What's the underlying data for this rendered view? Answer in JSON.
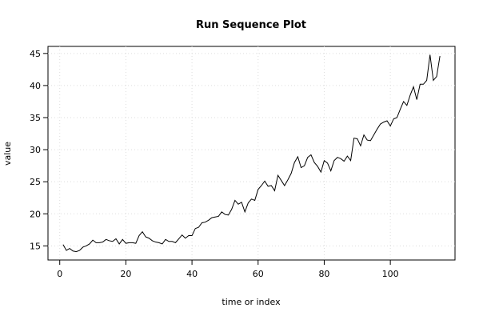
{
  "chart_data": {
    "type": "line",
    "title": "Run Sequence Plot",
    "xlabel": "time or index",
    "ylabel": "value",
    "x": [
      1,
      2,
      3,
      4,
      5,
      6,
      7,
      8,
      9,
      10,
      11,
      12,
      13,
      14,
      15,
      16,
      17,
      18,
      19,
      20,
      21,
      22,
      23,
      24,
      25,
      26,
      27,
      28,
      29,
      30,
      31,
      32,
      33,
      34,
      35,
      36,
      37,
      38,
      39,
      40,
      41,
      42,
      43,
      44,
      45,
      46,
      47,
      48,
      49,
      50,
      51,
      52,
      53,
      54,
      55,
      56,
      57,
      58,
      59,
      60,
      61,
      62,
      63,
      64,
      65,
      66,
      67,
      68,
      69,
      70,
      71,
      72,
      73,
      74,
      75,
      76,
      77,
      78,
      79,
      80,
      81,
      82,
      83,
      84,
      85,
      86,
      87,
      88,
      89,
      90,
      91,
      92,
      93,
      94,
      95,
      96,
      97,
      98,
      99,
      100,
      101,
      102,
      103,
      104,
      105,
      106,
      107,
      108,
      109,
      110,
      111,
      112,
      113,
      114,
      115
    ],
    "values": [
      15.2,
      14.3,
      14.6,
      14.2,
      14.1,
      14.3,
      14.8,
      15.0,
      15.3,
      15.9,
      15.5,
      15.5,
      15.6,
      16.0,
      15.8,
      15.7,
      16.1,
      15.3,
      16.0,
      15.4,
      15.5,
      15.5,
      15.4,
      16.6,
      17.2,
      16.4,
      16.2,
      15.8,
      15.6,
      15.5,
      15.3,
      16.0,
      15.7,
      15.7,
      15.5,
      16.1,
      16.7,
      16.2,
      16.6,
      16.6,
      17.7,
      17.9,
      18.6,
      18.7,
      19.0,
      19.4,
      19.5,
      19.6,
      20.3,
      19.9,
      19.8,
      20.7,
      22.1,
      21.5,
      21.8,
      20.3,
      21.7,
      22.3,
      22.1,
      23.8,
      24.4,
      25.1,
      24.3,
      24.4,
      23.6,
      26.0,
      25.2,
      24.4,
      25.3,
      26.3,
      28.0,
      28.9,
      27.2,
      27.5,
      28.8,
      29.2,
      28.0,
      27.4,
      26.5,
      28.3,
      27.9,
      26.7,
      28.3,
      28.8,
      28.6,
      28.2,
      29.0,
      28.3,
      31.8,
      31.7,
      30.6,
      32.3,
      31.5,
      31.4,
      32.3,
      33.2,
      34.0,
      34.3,
      34.5,
      33.7,
      34.8,
      35.0,
      36.3,
      37.5,
      36.9,
      38.5,
      39.8,
      37.8,
      40.2,
      40.2,
      40.8,
      44.8,
      40.8,
      41.4,
      44.6
    ],
    "color": "#000000",
    "xlim": [
      -3.56,
      119.56
    ],
    "xticks": [
      0,
      20,
      40,
      60,
      80,
      100
    ],
    "ylim": [
      12.8,
      46.1
    ],
    "yticks": [
      15,
      20,
      25,
      30,
      35,
      40,
      45
    ],
    "grid": true
  }
}
